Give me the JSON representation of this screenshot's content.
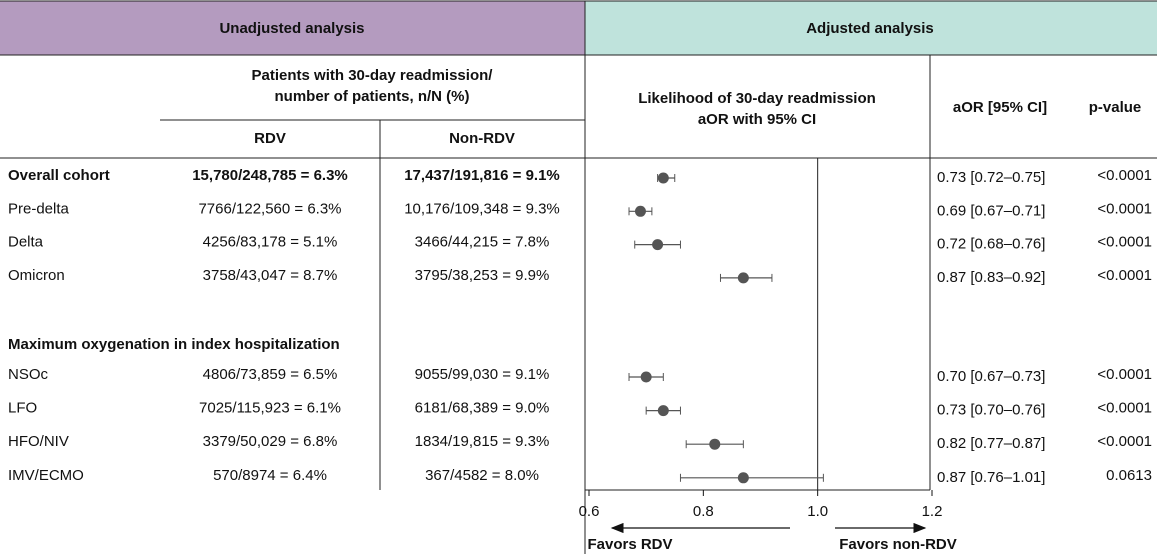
{
  "chart_data": {
    "type": "forest",
    "left_header": "Unadjusted analysis",
    "right_header": "Adjusted analysis",
    "counts_header": [
      "Patients with 30-day readmission/",
      "number of patients, n/N (%)"
    ],
    "col_rdv": "RDV",
    "col_non_rdv": "Non-RDV",
    "plot_header": [
      "Likelihood of 30-day readmission",
      "aOR with 95% CI"
    ],
    "col_aor": "aOR [95% CI]",
    "col_p": "p-value",
    "section_title": "Maximum oxygenation in index hospitalization",
    "rows": [
      {
        "label": "Overall cohort",
        "rdv": "15,780/248,785 = 6.3%",
        "non_rdv": "17,437/191,816 = 9.1%",
        "aor": 0.73,
        "lower": 0.72,
        "upper": 0.75,
        "aor_label": "0.73 [0.72–0.75]",
        "p_value": "<0.0001"
      },
      {
        "label": "Pre-delta",
        "rdv": "7766/122,560  = 6.3%",
        "non_rdv": "10,176/109,348 = 9.3%",
        "aor": 0.69,
        "lower": 0.67,
        "upper": 0.71,
        "aor_label": "0.69 [0.67–0.71]",
        "p_value": "<0.0001"
      },
      {
        "label": "Delta",
        "rdv": "4256/83,178 = 5.1%",
        "non_rdv": "3466/44,215 = 7.8%",
        "aor": 0.72,
        "lower": 0.68,
        "upper": 0.76,
        "aor_label": "0.72 [0.68–0.76]",
        "p_value": "<0.0001"
      },
      {
        "label": "Omicron",
        "rdv": "3758/43,047 = 8.7%",
        "non_rdv": "3795/38,253 = 9.9%",
        "aor": 0.87,
        "lower": 0.83,
        "upper": 0.92,
        "aor_label": "0.87 [0.83–0.92]",
        "p_value": "<0.0001"
      },
      {
        "label": "NSOc",
        "rdv": "4806/73,859 = 6.5%",
        "non_rdv": "9055/99,030 = 9.1%",
        "aor": 0.7,
        "lower": 0.67,
        "upper": 0.73,
        "aor_label": "0.70 [0.67–0.73]",
        "p_value": "<0.0001"
      },
      {
        "label": "LFO",
        "rdv": "7025/115,923 = 6.1%",
        "non_rdv": "6181/68,389 = 9.0%",
        "aor": 0.73,
        "lower": 0.7,
        "upper": 0.76,
        "aor_label": "0.73 [0.70–0.76]",
        "p_value": "<0.0001"
      },
      {
        "label": "HFO/NIV",
        "rdv": "3379/50,029 = 6.8%",
        "non_rdv": "1834/19,815 = 9.3%",
        "aor": 0.82,
        "lower": 0.77,
        "upper": 0.87,
        "aor_label": "0.82 [0.77–0.87]",
        "p_value": "<0.0001"
      },
      {
        "label": "IMV/ECMO",
        "rdv": "570/8974 = 6.4%",
        "non_rdv": "367/4582 = 8.0%",
        "aor": 0.87,
        "lower": 0.76,
        "upper": 1.01,
        "aor_label": "0.87 [0.76–1.01]",
        "p_value": "0.0613"
      }
    ],
    "xlim": [
      0.6,
      1.2
    ],
    "xticks": [
      0.6,
      0.8,
      {
        "value": 1,
        "label": "1.0"
      },
      1.2
    ],
    "reference": 1,
    "favors_left": "Favors RDV",
    "favors_right": "Favors non-RDV",
    "left_color": "#b49bbf",
    "right_color": "#bfe3dc",
    "point_color": "#555555"
  }
}
